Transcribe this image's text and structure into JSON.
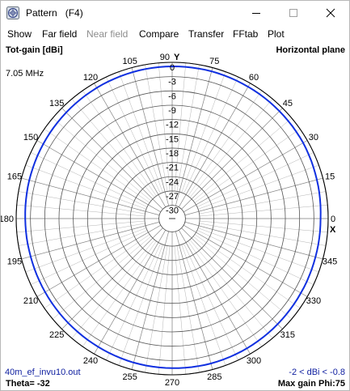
{
  "window": {
    "title": "Pattern   (F4)",
    "icon": "antenna-app-icon",
    "controls": [
      "minimize-icon",
      "maximize-icon",
      "close-icon"
    ]
  },
  "menu": [
    {
      "label": "Show",
      "enabled": true
    },
    {
      "label": "Far field",
      "enabled": true
    },
    {
      "label": "Near field",
      "enabled": false
    },
    {
      "label": "Compare",
      "enabled": true
    },
    {
      "label": "Transfer",
      "enabled": true
    },
    {
      "label": "FFtab",
      "enabled": true
    },
    {
      "label": "Plot",
      "enabled": true
    }
  ],
  "plot": {
    "top_left_label": "Tot-gain [dBi]",
    "top_right_label": "Horizontal plane",
    "frequency": "7.05 MHz",
    "y_axis_label": "Y",
    "x_axis_label": "X",
    "file_name": "40m_ef_invu10.out",
    "gain_range": "-2 < dBi < -0.8",
    "theta": "Theta= -32",
    "max_gain": "Max gain Phi:75",
    "angle_labels": [
      {
        "angle": 0,
        "text": "0"
      },
      {
        "angle": 15,
        "text": "15"
      },
      {
        "angle": 30,
        "text": "30"
      },
      {
        "angle": 45,
        "text": "45"
      },
      {
        "angle": 60,
        "text": "60"
      },
      {
        "angle": 75,
        "text": "75"
      },
      {
        "angle": 90,
        "text": "90"
      },
      {
        "angle": 105,
        "text": "105"
      },
      {
        "angle": 120,
        "text": "120"
      },
      {
        "angle": 135,
        "text": "135"
      },
      {
        "angle": 150,
        "text": "150"
      },
      {
        "angle": 165,
        "text": "165"
      },
      {
        "angle": 180,
        "text": "180"
      },
      {
        "angle": 195,
        "text": "195"
      },
      {
        "angle": 210,
        "text": "210"
      },
      {
        "angle": 225,
        "text": "225"
      },
      {
        "angle": 240,
        "text": "240"
      },
      {
        "angle": 255,
        "text": "255"
      },
      {
        "angle": 270,
        "text": "270"
      },
      {
        "angle": 285,
        "text": "285"
      },
      {
        "angle": 300,
        "text": "300"
      },
      {
        "angle": 315,
        "text": "315"
      },
      {
        "angle": 330,
        "text": "330"
      },
      {
        "angle": 345,
        "text": "345"
      }
    ],
    "ring_labels": [
      "0",
      "-3",
      "-6",
      "-9",
      "-12",
      "-15",
      "-18",
      "-21",
      "-24",
      "-27",
      "-30"
    ],
    "colors": {
      "pattern": "#1030e0",
      "grid": "#b4b4b4",
      "outer_ring": "#000000",
      "footer_text": "#1020a0"
    }
  },
  "chart_data": {
    "type": "polar",
    "angle_unit": "deg",
    "radial_unit": "dBi",
    "radial_range": [
      -30,
      0
    ],
    "radial_ticks": [
      0,
      -3,
      -6,
      -9,
      -12,
      -15,
      -18,
      -21,
      -24,
      -27,
      -30
    ],
    "angular_ticks": [
      0,
      15,
      30,
      45,
      60,
      75,
      90,
      105,
      120,
      135,
      150,
      165,
      180,
      195,
      210,
      225,
      240,
      255,
      270,
      285,
      300,
      315,
      330,
      345
    ],
    "grid": true,
    "series": [
      {
        "angles": [
          0,
          15,
          30,
          45,
          60,
          75,
          90,
          105,
          120,
          135,
          150,
          165,
          180,
          195,
          210,
          225,
          240,
          255,
          270,
          285,
          300,
          315,
          330,
          345,
          360
        ],
        "values": [
          -1.6,
          -1.3,
          -1.0,
          -0.9,
          -0.85,
          -0.8,
          -0.85,
          -0.95,
          -1.1,
          -1.3,
          -1.5,
          -1.7,
          -1.9,
          -2.0,
          -1.95,
          -1.85,
          -1.7,
          -1.5,
          -1.4,
          -1.3,
          -1.35,
          -1.45,
          -1.55,
          -1.6,
          -1.6
        ]
      }
    ]
  }
}
